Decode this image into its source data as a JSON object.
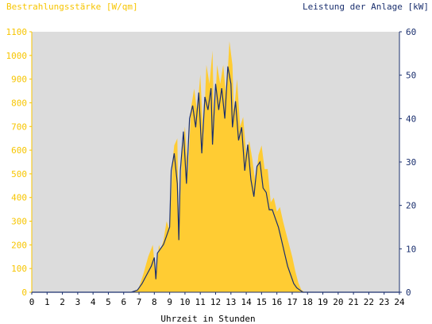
{
  "chart_data": {
    "type": "area",
    "title_left": "Bestrahlungsstärke [W/qm]",
    "title_right": "Leistung der Anlage [kW]",
    "xlabel": "Uhrzeit in Stunden",
    "x_ticks": [
      "0",
      "1",
      "2",
      "3",
      "4",
      "5",
      "6",
      "7",
      "8",
      "9",
      "10",
      "11",
      "12",
      "13",
      "14",
      "15",
      "16",
      "17",
      "18",
      "19",
      "20",
      "21",
      "22",
      "23",
      "24"
    ],
    "xlim": [
      0,
      24
    ],
    "y_left_ticks": [
      "0",
      "100",
      "200",
      "300",
      "400",
      "500",
      "600",
      "700",
      "800",
      "900",
      "1000",
      "1100"
    ],
    "ylim_left": [
      0,
      1100
    ],
    "y_right_ticks": [
      "0",
      "10",
      "20",
      "30",
      "40",
      "50",
      "60"
    ],
    "ylim_right": [
      0,
      60
    ],
    "grid": false,
    "colors": {
      "irradiance_fill": "#ffcc33",
      "power_line": "#1a2f6e",
      "plot_background": "#dcdcdc",
      "left_axis": "#f7c500",
      "right_axis": "#1a2f6e"
    },
    "series": [
      {
        "axis": "left",
        "kind": "area",
        "x": [
          0,
          6.4,
          6.8,
          7.0,
          7.3,
          7.6,
          7.9,
          8.1,
          8.3,
          8.4,
          8.6,
          8.8,
          9.0,
          9.2,
          9.3,
          9.5,
          9.6,
          9.8,
          10.0,
          10.2,
          10.4,
          10.6,
          10.8,
          11.0,
          11.2,
          11.4,
          11.6,
          11.8,
          11.9,
          12.1,
          12.3,
          12.5,
          12.7,
          12.9,
          13.1,
          13.2,
          13.4,
          13.6,
          13.8,
          14.0,
          14.2,
          14.4,
          14.6,
          14.8,
          15.0,
          15.2,
          15.4,
          15.6,
          15.8,
          16.0,
          16.2,
          16.4,
          16.6,
          16.8,
          17.0,
          17.2,
          17.4,
          17.6,
          17.8,
          18.0,
          18.3,
          24
        ],
        "values": [
          0,
          0,
          5,
          20,
          80,
          150,
          200,
          60,
          200,
          180,
          220,
          300,
          260,
          560,
          620,
          650,
          240,
          580,
          700,
          500,
          780,
          860,
          760,
          920,
          650,
          960,
          880,
          1020,
          700,
          960,
          880,
          960,
          820,
          1060,
          960,
          760,
          900,
          700,
          740,
          580,
          640,
          560,
          460,
          580,
          620,
          520,
          520,
          380,
          400,
          340,
          360,
          300,
          250,
          200,
          150,
          90,
          40,
          10,
          0,
          0,
          0,
          0
        ]
      },
      {
        "axis": "right",
        "kind": "line",
        "x": [
          0,
          6.5,
          6.9,
          7.2,
          7.5,
          7.8,
          8.0,
          8.1,
          8.2,
          8.4,
          8.6,
          8.8,
          9.0,
          9.1,
          9.3,
          9.5,
          9.6,
          9.7,
          9.9,
          10.1,
          10.3,
          10.5,
          10.7,
          10.9,
          11.1,
          11.3,
          11.5,
          11.7,
          11.8,
          12.0,
          12.2,
          12.4,
          12.6,
          12.8,
          13.0,
          13.1,
          13.3,
          13.5,
          13.7,
          13.9,
          14.1,
          14.3,
          14.5,
          14.7,
          14.9,
          15.1,
          15.3,
          15.5,
          15.7,
          15.9,
          16.1,
          16.3,
          16.5,
          16.7,
          16.9,
          17.1,
          17.3,
          17.5,
          17.7,
          17.9,
          18.2,
          24
        ],
        "values": [
          0,
          0,
          0.5,
          2,
          4,
          6,
          8,
          3,
          9,
          10,
          11,
          13,
          15,
          28,
          32,
          25,
          12,
          28,
          37,
          25,
          40,
          43,
          38,
          46,
          32,
          45,
          42,
          47,
          34,
          48,
          42,
          47,
          40,
          52,
          48,
          38,
          44,
          35,
          38,
          28,
          34,
          26,
          22,
          29,
          30,
          24,
          23,
          19,
          19,
          17,
          15,
          12,
          9,
          6,
          4,
          2,
          1,
          0.5,
          0,
          0,
          0,
          0
        ]
      }
    ]
  }
}
